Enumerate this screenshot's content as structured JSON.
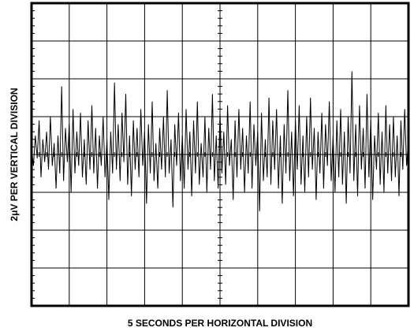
{
  "chart_data": {
    "type": "line",
    "title": "",
    "xlabel": "5 SECONDS PER HORIZONTAL DIVISION",
    "ylabel": "2μV PER VERTICAL DIVISION",
    "x_divisions": 10,
    "y_divisions": 8,
    "grid": true,
    "center_axis_minor_ticks": 5,
    "series": [
      {
        "x_unit": "division",
        "y_unit": "division",
        "x": [
          0.0,
          0.05,
          0.1,
          0.15,
          0.2,
          0.25,
          0.3,
          0.35,
          0.4,
          0.45,
          0.5,
          0.55,
          0.6,
          0.65,
          0.7,
          0.75,
          0.8,
          0.85,
          0.9,
          0.95,
          1.0,
          1.05,
          1.1,
          1.15,
          1.2,
          1.25,
          1.3,
          1.35,
          1.4,
          1.45,
          1.5,
          1.55,
          1.6,
          1.65,
          1.7,
          1.75,
          1.8,
          1.85,
          1.9,
          1.95,
          2.0,
          2.05,
          2.1,
          2.15,
          2.2,
          2.25,
          2.3,
          2.35,
          2.4,
          2.45,
          2.5,
          2.55,
          2.6,
          2.65,
          2.7,
          2.75,
          2.8,
          2.85,
          2.9,
          2.95,
          3.0,
          3.05,
          3.1,
          3.15,
          3.2,
          3.25,
          3.3,
          3.35,
          3.4,
          3.45,
          3.5,
          3.55,
          3.6,
          3.65,
          3.7,
          3.75,
          3.8,
          3.85,
          3.9,
          3.95,
          4.0,
          4.05,
          4.1,
          4.15,
          4.2,
          4.25,
          4.3,
          4.35,
          4.4,
          4.45,
          4.5,
          4.55,
          4.6,
          4.65,
          4.7,
          4.75,
          4.8,
          4.85,
          4.9,
          4.95,
          5.0,
          5.05,
          5.1,
          5.15,
          5.2,
          5.25,
          5.3,
          5.35,
          5.4,
          5.45,
          5.5,
          5.55,
          5.6,
          5.65,
          5.7,
          5.75,
          5.8,
          5.85,
          5.9,
          5.95,
          6.0,
          6.05,
          6.1,
          6.15,
          6.2,
          6.25,
          6.3,
          6.35,
          6.4,
          6.45,
          6.5,
          6.55,
          6.6,
          6.65,
          6.7,
          6.75,
          6.8,
          6.85,
          6.9,
          6.95,
          7.0,
          7.05,
          7.1,
          7.15,
          7.2,
          7.25,
          7.3,
          7.35,
          7.4,
          7.45,
          7.5,
          7.55,
          7.6,
          7.65,
          7.7,
          7.75,
          7.8,
          7.85,
          7.9,
          7.95,
          8.0,
          8.05,
          8.1,
          8.15,
          8.2,
          8.25,
          8.3,
          8.35,
          8.4,
          8.45,
          8.5,
          8.55,
          8.6,
          8.65,
          8.7,
          8.75,
          8.8,
          8.85,
          8.9,
          8.95,
          9.0,
          9.05,
          9.1,
          9.15,
          9.2,
          9.25,
          9.3,
          9.35,
          9.4,
          9.45,
          9.5,
          9.55,
          9.6,
          9.65,
          9.7,
          9.75,
          9.8,
          9.85,
          9.9,
          9.95,
          10.0
        ],
        "y": [
          0.2,
          -0.3,
          0.5,
          -0.1,
          0.9,
          -0.6,
          0.4,
          -0.2,
          0.6,
          -0.4,
          1.0,
          -0.3,
          0.3,
          -0.9,
          0.5,
          -0.5,
          1.8,
          -0.7,
          0.7,
          -0.2,
          0.8,
          -1.0,
          1.2,
          -0.5,
          0.6,
          -0.3,
          1.1,
          -0.6,
          0.4,
          -0.8,
          0.9,
          -0.4,
          1.3,
          -0.5,
          0.7,
          -0.9,
          0.5,
          -0.3,
          1.0,
          -0.6,
          0.4,
          -1.2,
          0.6,
          -0.5,
          1.9,
          -0.4,
          0.8,
          -0.7,
          1.1,
          -0.2,
          1.6,
          -0.8,
          0.5,
          -1.1,
          0.9,
          -0.4,
          0.7,
          -0.6,
          1.2,
          -0.3,
          0.6,
          -1.3,
          0.8,
          -0.5,
          1.4,
          -0.7,
          0.3,
          -0.9,
          0.7,
          -0.4,
          1.0,
          -0.6,
          1.7,
          -0.5,
          0.4,
          -1.4,
          0.8,
          -0.3,
          1.1,
          -0.7,
          0.5,
          -0.9,
          1.2,
          -0.4,
          0.6,
          -1.1,
          0.9,
          -0.5,
          1.4,
          -0.8,
          0.3,
          -0.6,
          1.0,
          -1.0,
          0.7,
          -0.4,
          1.6,
          -0.7,
          0.5,
          -0.9,
          1.1,
          -0.5,
          0.6,
          -0.8,
          1.3,
          -0.3,
          0.4,
          -1.2,
          0.9,
          -0.6,
          1.2,
          -0.4,
          0.7,
          -1.0,
          0.5,
          -0.5,
          1.4,
          -0.9,
          0.8,
          -0.3,
          0.6,
          -1.5,
          1.1,
          -0.7,
          0.4,
          -0.6,
          1.5,
          -0.8,
          0.9,
          -0.4,
          1.2,
          -0.9,
          0.5,
          -1.3,
          0.8,
          -0.5,
          1.7,
          -0.7,
          0.6,
          -1.1,
          0.9,
          -0.4,
          1.3,
          -0.8,
          0.5,
          -1.0,
          1.0,
          -0.6,
          1.5,
          -0.4,
          0.7,
          -1.2,
          0.6,
          -0.5,
          1.1,
          -0.9,
          0.8,
          -0.3,
          1.4,
          -0.7,
          0.5,
          -1.0,
          0.9,
          -0.6,
          1.2,
          -0.8,
          0.6,
          -1.3,
          1.0,
          -0.5,
          2.2,
          -0.7,
          0.8,
          -1.1,
          1.3,
          -0.4,
          0.7,
          -0.9,
          1.6,
          -0.6,
          0.9,
          -1.2,
          0.5,
          -0.4,
          1.1,
          -0.8,
          0.6,
          -1.0,
          1.3,
          -0.5,
          0.8,
          -0.7,
          1.0,
          -0.6,
          0.5,
          -1.1,
          0.9,
          -0.4,
          1.2,
          -0.3,
          0.4
        ]
      }
    ]
  }
}
